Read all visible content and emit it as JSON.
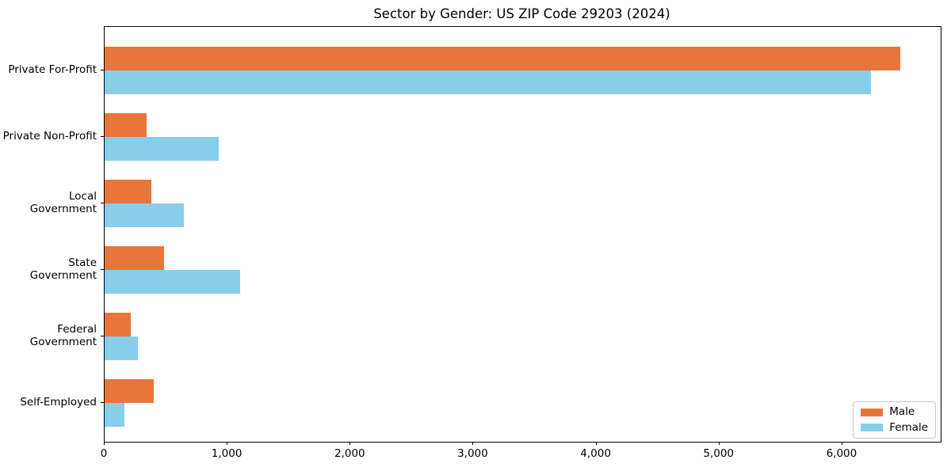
{
  "chart_data": {
    "type": "bar",
    "orientation": "horizontal",
    "title": "Sector by Gender: US ZIP Code 29203 (2024)",
    "categories": [
      "Private For-Profit",
      "Private Non-Profit",
      "Local Government",
      "State Government",
      "Federal Government",
      "Self-Employed"
    ],
    "series": [
      {
        "name": "Male",
        "color": "#E8763B",
        "values": [
          6470,
          340,
          380,
          485,
          210,
          400
        ]
      },
      {
        "name": "Female",
        "color": "#87CEEB",
        "values": [
          6230,
          930,
          645,
          1100,
          270,
          160
        ]
      }
    ],
    "xlabel": "",
    "ylabel": "",
    "xlim": [
      0,
      6800
    ],
    "x_ticks": [
      0,
      1000,
      2000,
      3000,
      4000,
      5000,
      6000
    ],
    "x_tick_labels": [
      "0",
      "1,000",
      "2,000",
      "3,000",
      "4,000",
      "5,000",
      "6,000"
    ],
    "grid": false,
    "legend": {
      "position": "lower right"
    }
  }
}
